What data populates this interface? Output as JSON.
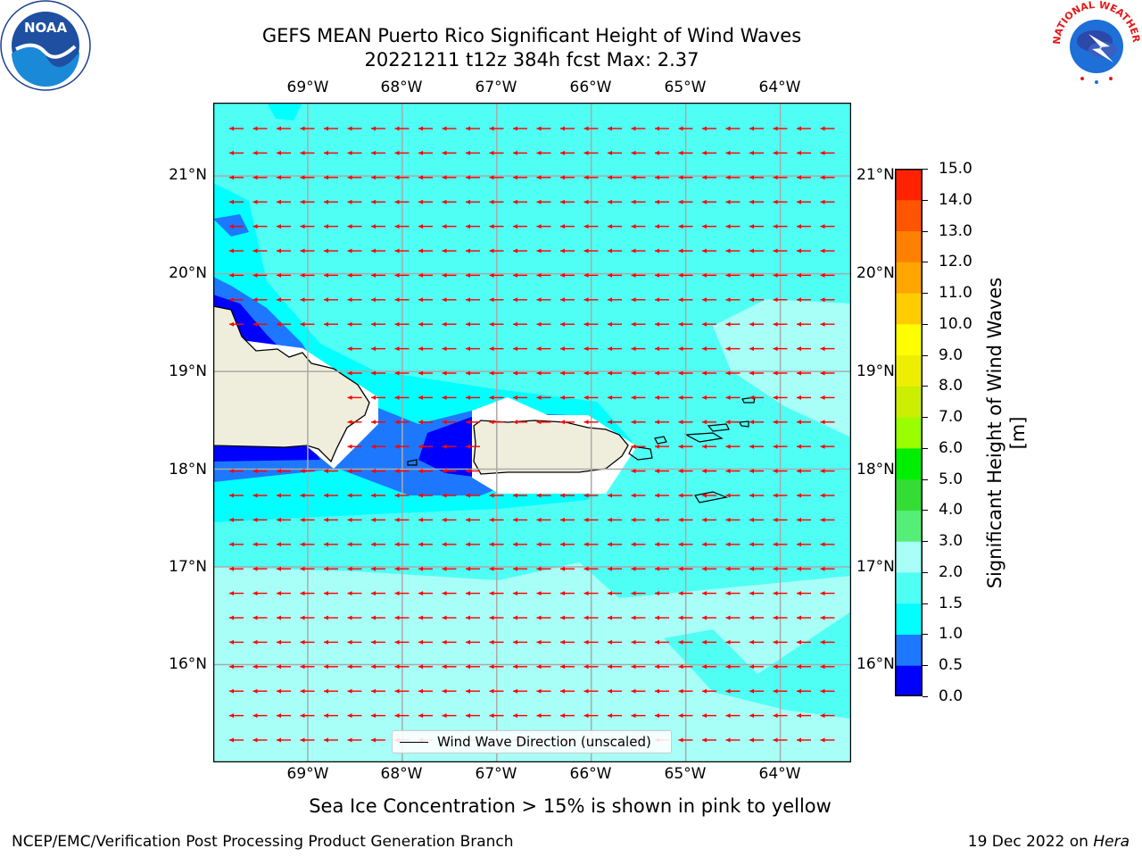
{
  "title": {
    "line1": "GEFS MEAN Puerto Rico Significant Height of Wind Waves",
    "line2": "20221211 t12z 384h fcst   Max: 2.37"
  },
  "map": {
    "lon_labels": [
      "69°W",
      "68°W",
      "67°W",
      "66°W",
      "65°W",
      "64°W"
    ],
    "lat_labels": [
      "21°N",
      "20°N",
      "19°N",
      "18°N",
      "17°N",
      "16°N"
    ],
    "lon_values": [
      -69,
      -68,
      -67,
      -66,
      -65,
      -64
    ],
    "lat_values": [
      21,
      20,
      19,
      18,
      17,
      16
    ],
    "lon_range": [
      -70.0,
      -63.25
    ],
    "lat_range": [
      15.0,
      21.75
    ],
    "ocean_color": "#7fffff",
    "land_color": "#efeedc",
    "arrow_color": "#ff0000",
    "arrow_direction": "westward"
  },
  "legend": {
    "label": "Wind Wave Direction (unscaled)"
  },
  "colorbar": {
    "title": "Significant Height of Wind Waves [m]",
    "ticks": [
      "15.0",
      "14.0",
      "13.0",
      "12.0",
      "11.0",
      "10.0",
      "9.0",
      "8.0",
      "7.0",
      "6.0",
      "5.0",
      "4.0",
      "3.0",
      "2.0",
      "1.5",
      "1.0",
      "0.5",
      "0.0"
    ],
    "levels": [
      0.0,
      0.5,
      1.0,
      1.5,
      2.0,
      3.0,
      4.0,
      5.0,
      6.0,
      7.0,
      8.0,
      9.0,
      10.0,
      11.0,
      12.0,
      13.0,
      14.0,
      15.0
    ],
    "colors": [
      "#0000ff",
      "#1e78ff",
      "#00ffff",
      "#4ffff4",
      "#a7fff7",
      "#55ee77",
      "#33dd33",
      "#00ee00",
      "#99ff00",
      "#ccee00",
      "#eeee00",
      "#ffff00",
      "#ffcc00",
      "#ffa500",
      "#ff8000",
      "#ff5500",
      "#ff2200"
    ]
  },
  "note": "Sea Ice Concentration > 15% is shown in pink to yellow",
  "footer": {
    "left": "NCEP/EMC/Verification Post Processing Product Generation Branch",
    "right_date": "19 Dec 2022 on ",
    "right_host": "Hera"
  },
  "logos": {
    "left": "NOAA",
    "right": "NATIONAL WEATHER SERVICE"
  }
}
